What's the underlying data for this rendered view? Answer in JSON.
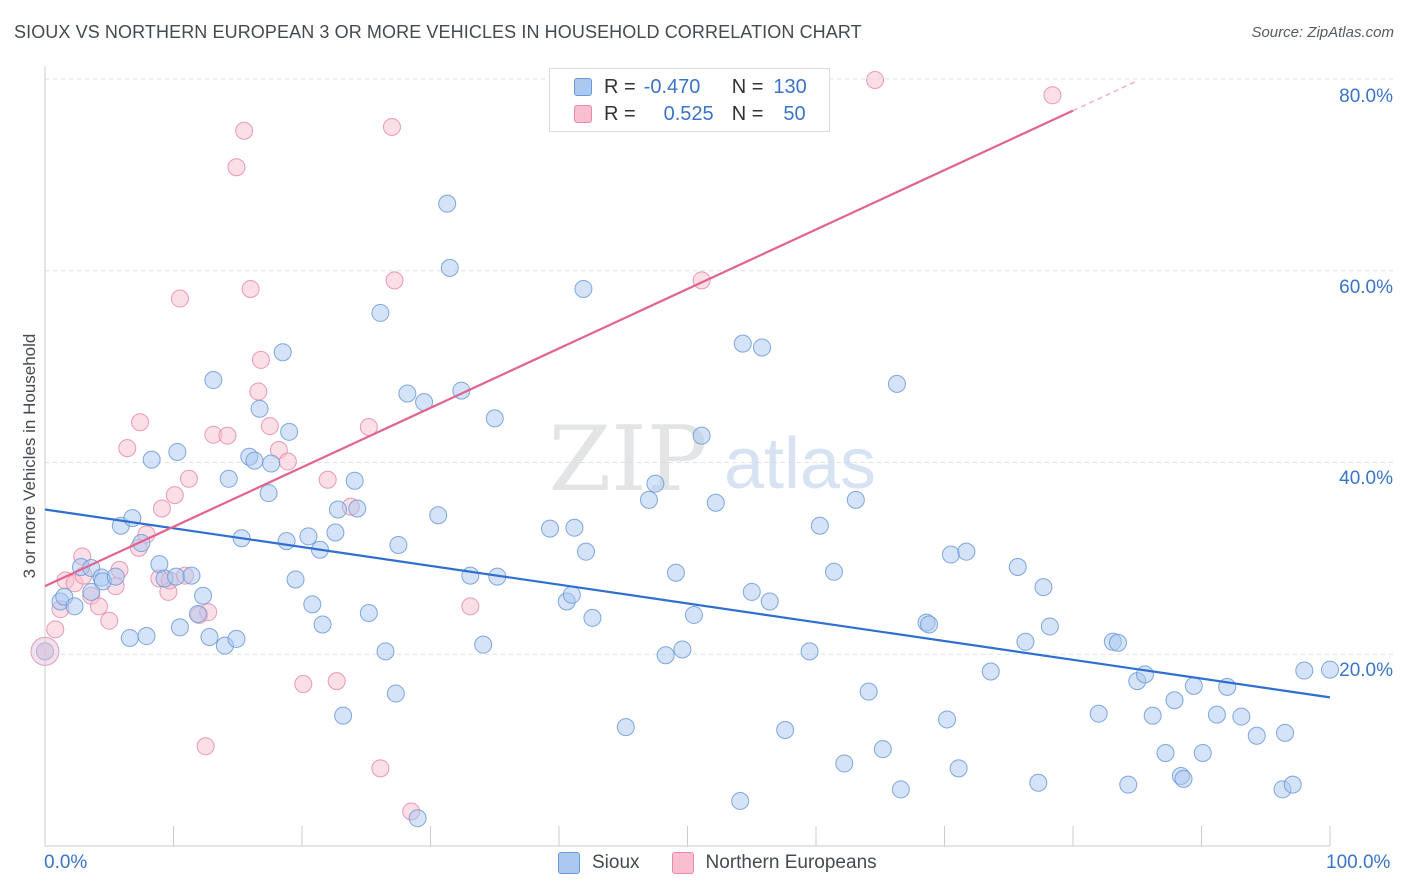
{
  "title": "SIOUX VS NORTHERN EUROPEAN 3 OR MORE VEHICLES IN HOUSEHOLD CORRELATION CHART",
  "source": "Source: ZipAtlas.com",
  "watermark": {
    "zip": "ZIP",
    "atlas": "atlas"
  },
  "legend_top": {
    "rows": [
      {
        "r_label": "R =",
        "r_value": "-0.470",
        "n_label": "N =",
        "n_value": "130"
      },
      {
        "r_label": "R =",
        "r_value": "0.525",
        "n_label": "N =",
        "n_value": "50"
      }
    ]
  },
  "chart_data": {
    "type": "scatter",
    "title": "SIOUX VS NORTHERN EUROPEAN 3 OR MORE VEHICLES IN HOUSEHOLD CORRELATION CHART",
    "xlabel": "",
    "ylabel": "3 or more Vehicles in Household",
    "xlim": [
      0,
      100
    ],
    "ylim": [
      0,
      80
    ],
    "x_tick_labels": [
      "0.0%",
      "100.0%"
    ],
    "y_tick_labels": [
      "20.0%",
      "40.0%",
      "60.0%",
      "80.0%"
    ],
    "y_ticks": [
      20,
      40,
      60,
      80
    ],
    "grid": true,
    "legend_position": "bottom-center",
    "colors": {
      "sioux_fill": "#aac8f0",
      "sioux_stroke": "#6b9ad8",
      "sioux_line": "#2f6fcf",
      "ne_fill": "#f8bfd0",
      "ne_stroke": "#e88aa8",
      "ne_line": "#e0648e",
      "grid": "#dde1e6",
      "tick_label": "#3a74c9"
    },
    "series": [
      {
        "name": "Sioux",
        "trend": {
          "x": [
            0,
            100
          ],
          "y": [
            35.1,
            15.5
          ]
        },
        "points": [
          [
            0,
            20.3
          ],
          [
            1.2,
            25.5
          ],
          [
            1.5,
            26
          ],
          [
            2.3,
            25
          ],
          [
            2.8,
            29.1
          ],
          [
            3.6,
            29
          ],
          [
            3.6,
            26.5
          ],
          [
            4.4,
            28
          ],
          [
            4.5,
            27.6
          ],
          [
            5.5,
            28.1
          ],
          [
            5.9,
            33.4
          ],
          [
            6.6,
            21.7
          ],
          [
            6.8,
            34.2
          ],
          [
            7.5,
            31.6
          ],
          [
            7.9,
            21.9
          ],
          [
            8.3,
            40.3
          ],
          [
            8.9,
            29.4
          ],
          [
            9.3,
            27.9
          ],
          [
            10.2,
            28.1
          ],
          [
            10.3,
            41.1
          ],
          [
            10.5,
            22.8
          ],
          [
            11.4,
            28.2
          ],
          [
            11.9,
            24.2
          ],
          [
            12.3,
            26.1
          ],
          [
            12.8,
            21.8
          ],
          [
            13.1,
            48.6
          ],
          [
            14,
            20.9
          ],
          [
            14.3,
            38.3
          ],
          [
            14.9,
            21.6
          ],
          [
            15.3,
            32.1
          ],
          [
            15.9,
            40.6
          ],
          [
            16.3,
            40.2
          ],
          [
            16.7,
            45.6
          ],
          [
            17.4,
            36.8
          ],
          [
            17.6,
            39.9
          ],
          [
            18.5,
            51.5
          ],
          [
            18.8,
            31.8
          ],
          [
            19,
            43.2
          ],
          [
            19.5,
            27.8
          ],
          [
            20.5,
            32.3
          ],
          [
            20.8,
            25.2
          ],
          [
            21.4,
            30.9
          ],
          [
            21.6,
            23.1
          ],
          [
            22.6,
            32.7
          ],
          [
            22.8,
            35.1
          ],
          [
            23.2,
            13.6
          ],
          [
            24.1,
            38.1
          ],
          [
            24.3,
            35.2
          ],
          [
            25.2,
            24.3
          ],
          [
            26.1,
            55.6
          ],
          [
            26.5,
            20.3
          ],
          [
            27.3,
            15.9
          ],
          [
            27.5,
            31.4
          ],
          [
            28.2,
            47.2
          ],
          [
            29,
            2.9
          ],
          [
            29.5,
            46.3
          ],
          [
            30.6,
            34.5
          ],
          [
            31.3,
            67
          ],
          [
            31.5,
            60.3
          ],
          [
            32.4,
            47.5
          ],
          [
            33.1,
            28.2
          ],
          [
            34.1,
            21
          ],
          [
            35,
            44.6
          ],
          [
            35.2,
            28.1
          ],
          [
            39.3,
            33.1
          ],
          [
            40.6,
            25.5
          ],
          [
            41,
            26.2
          ],
          [
            41.2,
            33.2
          ],
          [
            41.9,
            58.1
          ],
          [
            42.1,
            30.7
          ],
          [
            42.6,
            23.8
          ],
          [
            45.2,
            12.4
          ],
          [
            47,
            36.1
          ],
          [
            47.5,
            37.8
          ],
          [
            48.3,
            19.9
          ],
          [
            49.1,
            28.5
          ],
          [
            49.6,
            20.5
          ],
          [
            50.5,
            24.1
          ],
          [
            51.1,
            42.8
          ],
          [
            52.2,
            35.8
          ],
          [
            54.1,
            4.7
          ],
          [
            54.3,
            52.4
          ],
          [
            55,
            26.5
          ],
          [
            55.8,
            52
          ],
          [
            56.4,
            25.5
          ],
          [
            57.6,
            12.1
          ],
          [
            59.5,
            20.3
          ],
          [
            60.3,
            33.4
          ],
          [
            61.4,
            28.6
          ],
          [
            62.2,
            8.6
          ],
          [
            63.1,
            36.1
          ],
          [
            64.1,
            16.1
          ],
          [
            65.2,
            10.1
          ],
          [
            66.3,
            48.2
          ],
          [
            66.6,
            5.9
          ],
          [
            68.6,
            23.3
          ],
          [
            68.8,
            23.1
          ],
          [
            70.2,
            13.2
          ],
          [
            70.5,
            30.4
          ],
          [
            71.1,
            8.1
          ],
          [
            71.7,
            30.7
          ],
          [
            73.6,
            18.2
          ],
          [
            75.7,
            29.1
          ],
          [
            76.3,
            21.3
          ],
          [
            77.3,
            6.6
          ],
          [
            77.7,
            27
          ],
          [
            78.2,
            22.9
          ],
          [
            82,
            13.8
          ],
          [
            83.1,
            21.3
          ],
          [
            83.5,
            21.2
          ],
          [
            84.3,
            6.4
          ],
          [
            85,
            17.2
          ],
          [
            85.6,
            17.9
          ],
          [
            86.2,
            13.6
          ],
          [
            87.2,
            9.7
          ],
          [
            87.9,
            15.2
          ],
          [
            88.4,
            7.3
          ],
          [
            88.6,
            7
          ],
          [
            89.4,
            16.7
          ],
          [
            90.1,
            9.7
          ],
          [
            91.2,
            13.7
          ],
          [
            92,
            16.6
          ],
          [
            93.1,
            13.5
          ],
          [
            94.3,
            11.5
          ],
          [
            96.3,
            5.9
          ],
          [
            96.5,
            11.8
          ],
          [
            97.1,
            6.4
          ],
          [
            98,
            18.3
          ],
          [
            100,
            18.4
          ]
        ]
      },
      {
        "name": "Northern Europeans",
        "trend": {
          "x": [
            0,
            80
          ],
          "y": [
            27.1,
            76.7
          ]
        },
        "points": [
          [
            0,
            20.3
          ],
          [
            0.8,
            22.6
          ],
          [
            1.2,
            24.7
          ],
          [
            1.6,
            27.7
          ],
          [
            2.3,
            27.4
          ],
          [
            2.9,
            30.2
          ],
          [
            3,
            28.2
          ],
          [
            3.6,
            26.1
          ],
          [
            4.2,
            25
          ],
          [
            5,
            23.5
          ],
          [
            5.5,
            27.1
          ],
          [
            5.8,
            28.8
          ],
          [
            6.4,
            41.5
          ],
          [
            7.3,
            31.1
          ],
          [
            7.4,
            44.2
          ],
          [
            7.9,
            32.5
          ],
          [
            8.9,
            27.9
          ],
          [
            9.1,
            35.2
          ],
          [
            9.6,
            26.5
          ],
          [
            9.7,
            27.7
          ],
          [
            10.1,
            36.6
          ],
          [
            10.5,
            57.1
          ],
          [
            10.9,
            28.2
          ],
          [
            11.2,
            38.3
          ],
          [
            12,
            24.1
          ],
          [
            12.5,
            10.4
          ],
          [
            12.7,
            24.4
          ],
          [
            13.1,
            42.9
          ],
          [
            14.2,
            42.8
          ],
          [
            14.9,
            70.8
          ],
          [
            15.5,
            74.6
          ],
          [
            16,
            58.1
          ],
          [
            16.6,
            47.4
          ],
          [
            16.8,
            50.7
          ],
          [
            17.5,
            43.8
          ],
          [
            18.2,
            41.3
          ],
          [
            18.9,
            40.1
          ],
          [
            20.1,
            16.9
          ],
          [
            22,
            38.2
          ],
          [
            22.7,
            17.2
          ],
          [
            23.8,
            35.4
          ],
          [
            25.2,
            43.7
          ],
          [
            26.1,
            8.1
          ],
          [
            27,
            75
          ],
          [
            27.2,
            59
          ],
          [
            28.5,
            3.6
          ],
          [
            33.1,
            25
          ],
          [
            51.1,
            59
          ],
          [
            64.6,
            79.9
          ],
          [
            78.4,
            78.3
          ]
        ]
      }
    ]
  }
}
